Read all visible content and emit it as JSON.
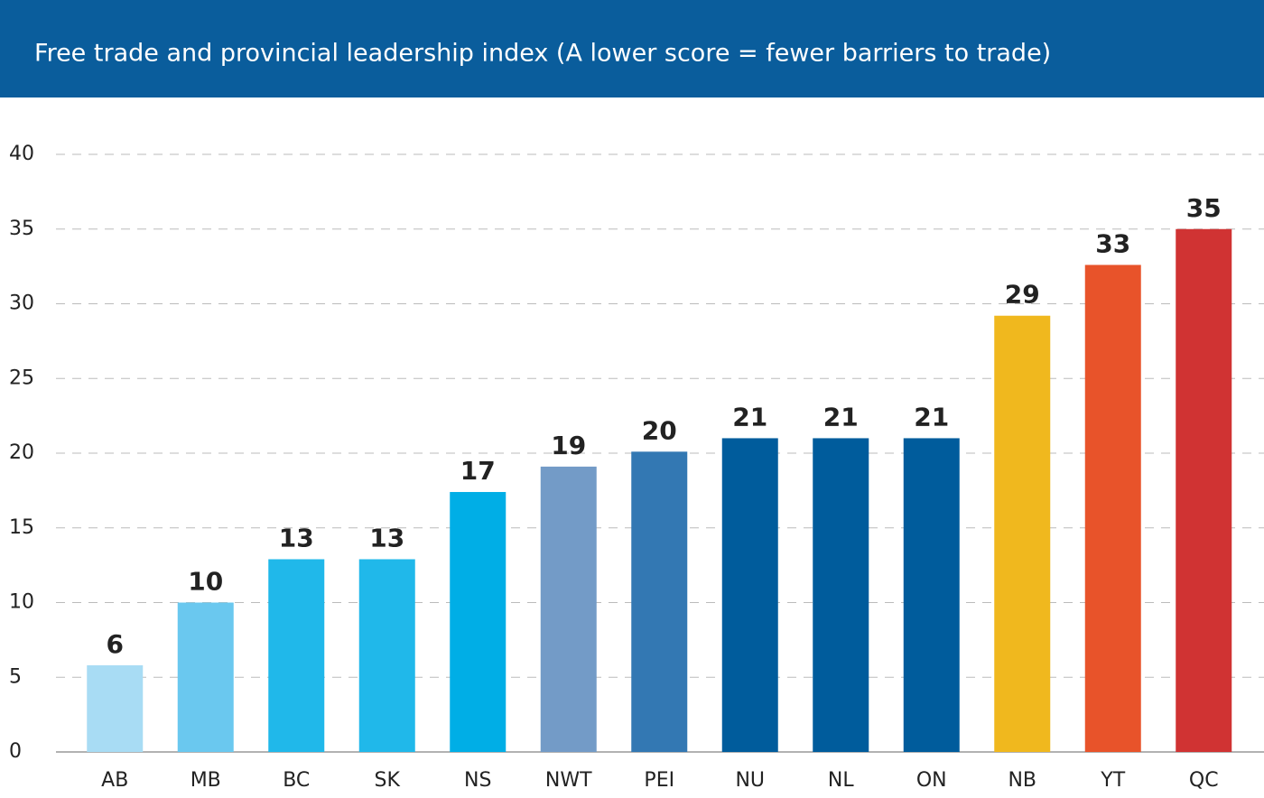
{
  "chart_data": {
    "type": "bar",
    "title": "Free trade and provincial leadership index (A lower score = fewer barriers to trade)",
    "categories": [
      "AB",
      "MB",
      "BC",
      "SK",
      "NS",
      "NWT",
      "PEI",
      "NU",
      "NL",
      "ON",
      "NB",
      "YT",
      "QC"
    ],
    "values": [
      5.8,
      10,
      12.9,
      12.9,
      17.4,
      19.1,
      20.1,
      21,
      21,
      21,
      29.2,
      32.6,
      35
    ],
    "value_labels": [
      "6",
      "10",
      "13",
      "13",
      "17",
      "19",
      "20",
      "21",
      "21",
      "21",
      "29",
      "33",
      "35"
    ],
    "colors": [
      "#a8dcf4",
      "#6ac8ef",
      "#20b8ea",
      "#20b8ea",
      "#00aee6",
      "#739bc7",
      "#3378b3",
      "#005c9c",
      "#005c9c",
      "#005c9c",
      "#f0b81e",
      "#e8532a",
      "#d03333"
    ],
    "ylim": [
      0,
      40
    ],
    "yticks": [
      0,
      5,
      10,
      15,
      20,
      25,
      30,
      35,
      40
    ],
    "grid": true
  }
}
